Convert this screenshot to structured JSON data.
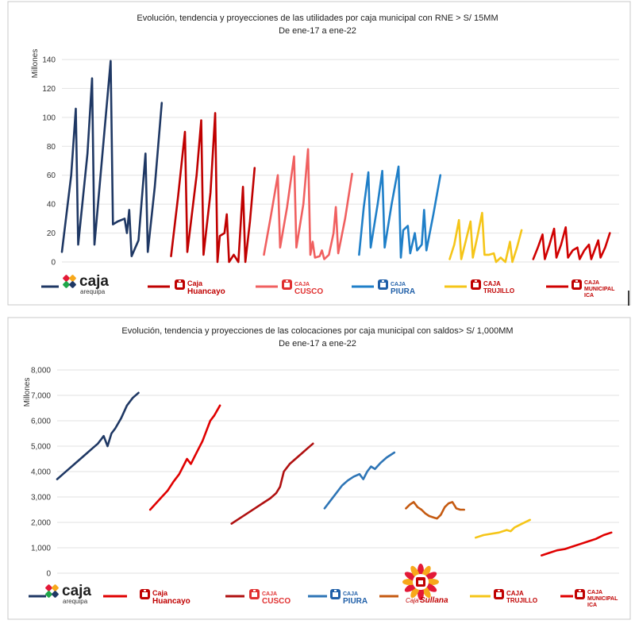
{
  "charts": [
    {
      "title": "Evolución, tendencia y proyecciones de las utilidades por caja municipal con RNE > S/ 15MM",
      "subtitle": "De ene-17 a ene-22",
      "ylabel": "Millones",
      "ytick_labels": [
        "0",
        "20",
        "40",
        "60",
        "80",
        "100",
        "120",
        "140"
      ]
    },
    {
      "title": "Evolución, tendencia y proyecciones de las colocaciones por caja municipal con saldos> S/ 1,000MM",
      "subtitle": "De ene-17 a ene-22",
      "ylabel": "Millones",
      "ytick_labels": [
        "0",
        "1,000",
        "2,000",
        "3,000",
        "4,000",
        "5,000",
        "6,000",
        "7,000",
        "8,000"
      ]
    }
  ],
  "legend_logos": {
    "arequipa": {
      "main": "caja",
      "sub": "arequipa",
      "color": "#1f3864"
    },
    "huancayo": {
      "main": "Caja",
      "sub": "Huancayo",
      "color": "#c00000"
    },
    "cusco": {
      "main": "CAJA",
      "sub": "CUSCO",
      "color": "#e03030"
    },
    "piura": {
      "main": "CAJA",
      "sub": "PIURA",
      "color": "#1f5fa8"
    },
    "sullana": {
      "main": "Caja",
      "sub": "Sullana",
      "color": "#c00000"
    },
    "trujillo": {
      "main": "CAJA",
      "sub": "TRUJILLO",
      "color": "#c00000"
    },
    "ica": {
      "main": "CAJA",
      "sub": "MUNICIPAL",
      "sub2": "ICA",
      "color": "#c00000"
    }
  },
  "chart_data": [
    {
      "type": "line",
      "title": "Evolución, tendencia y proyecciones de las utilidades por caja municipal con RNE > S/ 15MM",
      "subtitle": "De ene-17 a ene-22",
      "ylabel": "Millones",
      "ylim": [
        0,
        140
      ],
      "grid": true,
      "series": [
        {
          "name": "caja arequipa",
          "color": "#1f3864",
          "points": [
            [
              0,
              7
            ],
            [
              4,
              60
            ],
            [
              6,
              106
            ],
            [
              7,
              12
            ],
            [
              11,
              75
            ],
            [
              13,
              127
            ],
            [
              14,
              12
            ],
            [
              18,
              85
            ],
            [
              21,
              139
            ],
            [
              22,
              26
            ],
            [
              24,
              28
            ],
            [
              27,
              30
            ],
            [
              28,
              20
            ],
            [
              29,
              36
            ],
            [
              30,
              4
            ],
            [
              33,
              15
            ],
            [
              36,
              75
            ],
            [
              37,
              7
            ],
            [
              40,
              52
            ],
            [
              43,
              110
            ]
          ]
        },
        {
          "name": "caja huancayo",
          "color": "#c00000",
          "points": [
            [
              47,
              4
            ],
            [
              50,
              45
            ],
            [
              53,
              90
            ],
            [
              54,
              7
            ],
            [
              58,
              60
            ],
            [
              60,
              98
            ],
            [
              61,
              5
            ],
            [
              64,
              48
            ],
            [
              66,
              103
            ],
            [
              67,
              0
            ],
            [
              68,
              18
            ],
            [
              70,
              20
            ],
            [
              71,
              33
            ],
            [
              72,
              0
            ],
            [
              74,
              5
            ],
            [
              76,
              0
            ],
            [
              78,
              52
            ],
            [
              79,
              0
            ],
            [
              81,
              28
            ],
            [
              83,
              65
            ]
          ]
        },
        {
          "name": "caja cusco",
          "color": "#f06060",
          "points": [
            [
              87,
              5
            ],
            [
              90,
              32
            ],
            [
              93,
              60
            ],
            [
              94,
              10
            ],
            [
              97,
              38
            ],
            [
              100,
              73
            ],
            [
              101,
              10
            ],
            [
              104,
              40
            ],
            [
              106,
              78
            ],
            [
              107,
              5
            ],
            [
              108,
              14
            ],
            [
              109,
              3
            ],
            [
              111,
              4
            ],
            [
              112,
              8
            ],
            [
              113,
              2
            ],
            [
              115,
              5
            ],
            [
              117,
              20
            ],
            [
              118,
              38
            ],
            [
              119,
              6
            ],
            [
              122,
              30
            ],
            [
              125,
              61
            ]
          ]
        },
        {
          "name": "caja piura",
          "color": "#1f7fc8",
          "points": [
            [
              128,
              5
            ],
            [
              130,
              38
            ],
            [
              132,
              62
            ],
            [
              133,
              10
            ],
            [
              136,
              40
            ],
            [
              138,
              63
            ],
            [
              139,
              10
            ],
            [
              142,
              40
            ],
            [
              145,
              66
            ],
            [
              146,
              3
            ],
            [
              147,
              22
            ],
            [
              149,
              25
            ],
            [
              150,
              6
            ],
            [
              152,
              20
            ],
            [
              153,
              8
            ],
            [
              155,
              12
            ],
            [
              156,
              36
            ],
            [
              157,
              8
            ],
            [
              160,
              33
            ],
            [
              163,
              60
            ]
          ]
        },
        {
          "name": "caja trujillo",
          "color": "#f5c518",
          "points": [
            [
              167,
              2
            ],
            [
              169,
              12
            ],
            [
              171,
              29
            ],
            [
              172,
              2
            ],
            [
              174,
              15
            ],
            [
              176,
              28
            ],
            [
              177,
              3
            ],
            [
              179,
              18
            ],
            [
              181,
              34
            ],
            [
              182,
              5
            ],
            [
              184,
              5
            ],
            [
              186,
              6
            ],
            [
              187,
              0
            ],
            [
              189,
              3
            ],
            [
              191,
              0
            ],
            [
              193,
              14
            ],
            [
              194,
              0
            ],
            [
              196,
              10
            ],
            [
              198,
              22
            ]
          ]
        },
        {
          "name": "caja municipal ica",
          "color": "#d00000",
          "points": [
            [
              203,
              2
            ],
            [
              205,
              10
            ],
            [
              207,
              19
            ],
            [
              208,
              2
            ],
            [
              210,
              12
            ],
            [
              212,
              23
            ],
            [
              213,
              3
            ],
            [
              215,
              12
            ],
            [
              217,
              24
            ],
            [
              218,
              3
            ],
            [
              220,
              8
            ],
            [
              222,
              10
            ],
            [
              223,
              2
            ],
            [
              225,
              8
            ],
            [
              227,
              12
            ],
            [
              228,
              2
            ],
            [
              231,
              15
            ],
            [
              232,
              3
            ],
            [
              234,
              10
            ],
            [
              236,
              20
            ]
          ]
        }
      ]
    },
    {
      "type": "line",
      "title": "Evolución, tendencia y proyecciones de las colocaciones por caja municipal con saldos> S/ 1,000MM",
      "subtitle": "De ene-17 a ene-22",
      "ylabel": "Millones",
      "ylim": [
        0,
        8000
      ],
      "grid": true,
      "series": [
        {
          "name": "caja arequipa",
          "color": "#1f3864",
          "points": [
            [
              0,
              3700
            ],
            [
              3,
              3900
            ],
            [
              6,
              4100
            ],
            [
              9,
              4300
            ],
            [
              12,
              4500
            ],
            [
              15,
              4700
            ],
            [
              18,
              4900
            ],
            [
              21,
              5100
            ],
            [
              23,
              5300
            ],
            [
              24,
              5400
            ],
            [
              26,
              5000
            ],
            [
              28,
              5500
            ],
            [
              30,
              5700
            ],
            [
              33,
              6100
            ],
            [
              36,
              6600
            ],
            [
              39,
              6900
            ],
            [
              42,
              7100
            ]
          ]
        },
        {
          "name": "caja huancayo",
          "color": "#e00000",
          "points": [
            [
              48,
              2500
            ],
            [
              51,
              2750
            ],
            [
              54,
              3000
            ],
            [
              57,
              3250
            ],
            [
              60,
              3600
            ],
            [
              63,
              3900
            ],
            [
              65,
              4200
            ],
            [
              67,
              4500
            ],
            [
              69,
              4300
            ],
            [
              71,
              4600
            ],
            [
              73,
              4900
            ],
            [
              75,
              5200
            ],
            [
              77,
              5600
            ],
            [
              79,
              6000
            ],
            [
              81,
              6200
            ],
            [
              84,
              6600
            ]
          ]
        },
        {
          "name": "caja cusco",
          "color": "#b01010",
          "points": [
            [
              90,
              1950
            ],
            [
              94,
              2150
            ],
            [
              98,
              2350
            ],
            [
              102,
              2550
            ],
            [
              106,
              2750
            ],
            [
              110,
              2950
            ],
            [
              113,
              3150
            ],
            [
              115,
              3400
            ],
            [
              117,
              4000
            ],
            [
              120,
              4300
            ],
            [
              123,
              4500
            ],
            [
              126,
              4700
            ],
            [
              129,
              4900
            ],
            [
              132,
              5100
            ]
          ]
        },
        {
          "name": "caja piura",
          "color": "#2e75b6",
          "points": [
            [
              138,
              2550
            ],
            [
              141,
              2850
            ],
            [
              144,
              3150
            ],
            [
              147,
              3450
            ],
            [
              150,
              3650
            ],
            [
              153,
              3800
            ],
            [
              156,
              3900
            ],
            [
              158,
              3700
            ],
            [
              160,
              4000
            ],
            [
              162,
              4200
            ],
            [
              164,
              4100
            ],
            [
              167,
              4350
            ],
            [
              170,
              4550
            ],
            [
              174,
              4750
            ]
          ]
        },
        {
          "name": "caja sullana",
          "color": "#c55a11",
          "points": [
            [
              180,
              2550
            ],
            [
              182,
              2700
            ],
            [
              184,
              2800
            ],
            [
              186,
              2600
            ],
            [
              188,
              2500
            ],
            [
              190,
              2350
            ],
            [
              192,
              2250
            ],
            [
              194,
              2200
            ],
            [
              196,
              2150
            ],
            [
              198,
              2300
            ],
            [
              200,
              2600
            ],
            [
              202,
              2750
            ],
            [
              204,
              2800
            ],
            [
              206,
              2550
            ],
            [
              208,
              2500
            ],
            [
              210,
              2500
            ]
          ]
        },
        {
          "name": "caja trujillo",
          "color": "#f5c518",
          "points": [
            [
              216,
              1400
            ],
            [
              220,
              1500
            ],
            [
              224,
              1550
            ],
            [
              228,
              1600
            ],
            [
              232,
              1700
            ],
            [
              234,
              1650
            ],
            [
              236,
              1800
            ],
            [
              240,
              1950
            ],
            [
              244,
              2100
            ]
          ]
        },
        {
          "name": "caja municipal ica",
          "color": "#e00000",
          "points": [
            [
              250,
              700
            ],
            [
              254,
              800
            ],
            [
              258,
              900
            ],
            [
              262,
              950
            ],
            [
              266,
              1050
            ],
            [
              270,
              1150
            ],
            [
              274,
              1250
            ],
            [
              278,
              1350
            ],
            [
              282,
              1500
            ],
            [
              286,
              1600
            ]
          ]
        }
      ]
    }
  ]
}
